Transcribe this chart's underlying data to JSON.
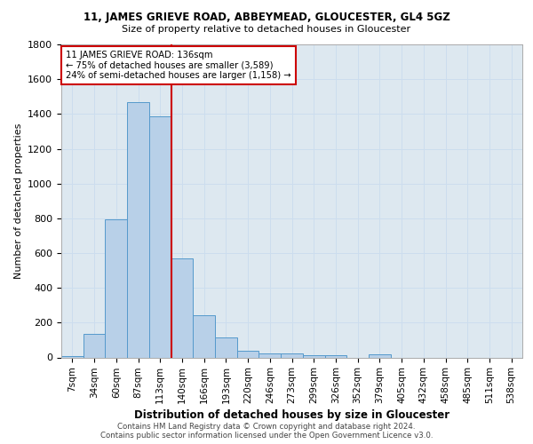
{
  "title1": "11, JAMES GRIEVE ROAD, ABBEYMEAD, GLOUCESTER, GL4 5GZ",
  "title2": "Size of property relative to detached houses in Gloucester",
  "xlabel": "Distribution of detached houses by size in Gloucester",
  "ylabel": "Number of detached properties",
  "bin_labels": [
    "7sqm",
    "34sqm",
    "60sqm",
    "87sqm",
    "113sqm",
    "140sqm",
    "166sqm",
    "193sqm",
    "220sqm",
    "246sqm",
    "273sqm",
    "299sqm",
    "326sqm",
    "352sqm",
    "379sqm",
    "405sqm",
    "432sqm",
    "458sqm",
    "485sqm",
    "511sqm",
    "538sqm"
  ],
  "bin_values": [
    10,
    135,
    795,
    1470,
    1385,
    570,
    245,
    115,
    40,
    25,
    25,
    15,
    15,
    0,
    20,
    0,
    0,
    0,
    0,
    0,
    0
  ],
  "bar_color": "#b8d0e8",
  "bar_edge_color": "#5599cc",
  "red_line_color": "#cc0000",
  "annotation_text": "11 JAMES GRIEVE ROAD: 136sqm\n← 75% of detached houses are smaller (3,589)\n24% of semi-detached houses are larger (1,158) →",
  "annotation_box_color": "#ffffff",
  "annotation_box_edge": "#cc0000",
  "grid_color": "#ccddee",
  "bg_color": "#dde8f0",
  "footer1": "Contains HM Land Registry data © Crown copyright and database right 2024.",
  "footer2": "Contains public sector information licensed under the Open Government Licence v3.0.",
  "ylim": [
    0,
    1800
  ],
  "yticks": [
    0,
    200,
    400,
    600,
    800,
    1000,
    1200,
    1400,
    1600,
    1800
  ]
}
